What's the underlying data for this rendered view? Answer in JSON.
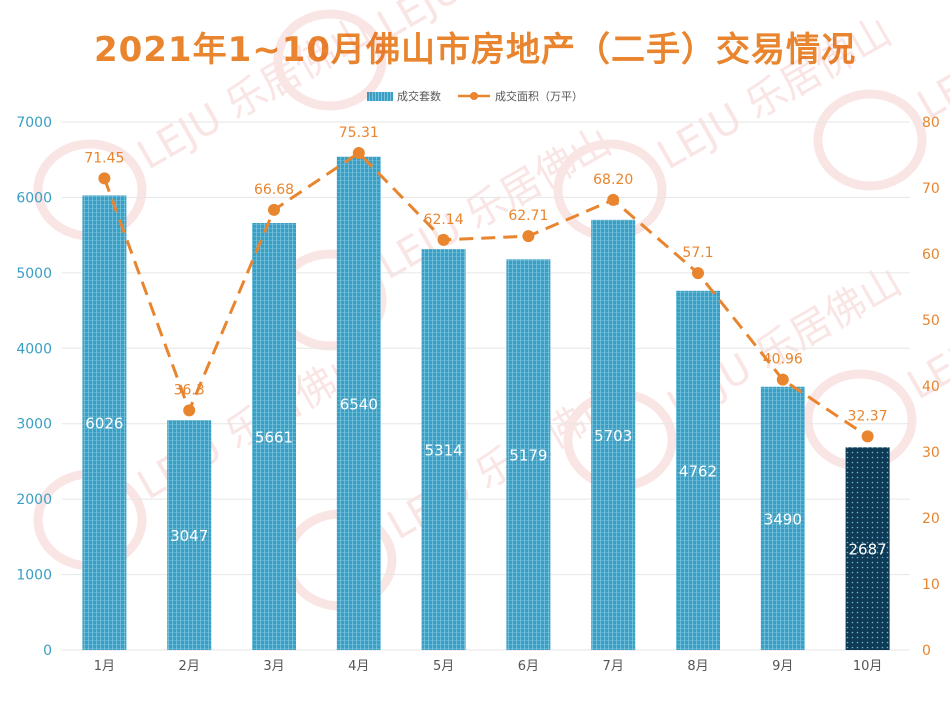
{
  "chart_data": {
    "type": "bar",
    "title": "2021年1~10月佛山市房地产（二手）交易情况",
    "categories": [
      "1月",
      "2月",
      "3月",
      "4月",
      "5月",
      "6月",
      "7月",
      "8月",
      "9月",
      "10月"
    ],
    "series": [
      {
        "name": "成交套数",
        "type": "bar",
        "axis": "left",
        "values": [
          6026,
          3047,
          5661,
          6540,
          5314,
          5179,
          5703,
          4762,
          3490,
          2687
        ],
        "labels": [
          "6026",
          "3047",
          "5661",
          "6540",
          "5314",
          "5179",
          "5703",
          "4762",
          "3490",
          "2687"
        ]
      },
      {
        "name": "成交面积（万平）",
        "type": "line",
        "axis": "right",
        "values": [
          71.45,
          36.3,
          66.68,
          75.31,
          62.14,
          62.71,
          68.2,
          57.1,
          40.96,
          32.37
        ],
        "labels": [
          "71.45",
          "36.3",
          "66.68",
          "75.31",
          "62.14",
          "62.71",
          "68.20",
          "57.1",
          "40.96",
          "32.37"
        ]
      }
    ],
    "y_left": {
      "ylim": [
        0,
        7000
      ],
      "ticks": [
        "0",
        "1000",
        "2000",
        "3000",
        "4000",
        "5000",
        "6000",
        "7000"
      ]
    },
    "y_right": {
      "ylim": [
        0,
        80
      ],
      "ticks": [
        "0",
        "10",
        "20",
        "30",
        "40",
        "50",
        "60",
        "70",
        "80"
      ]
    },
    "grid": true,
    "legend_position": "top",
    "colors": {
      "bar": "#3a9fc4",
      "bar_highlight": "#0e3a55",
      "line": "#e8852e",
      "title": "#e8852e",
      "left_axis_text": "#3a9fc4",
      "right_axis_text": "#e8852e",
      "grid": "#e6e6e6"
    },
    "watermark": "LEJU 乐居佛山"
  }
}
